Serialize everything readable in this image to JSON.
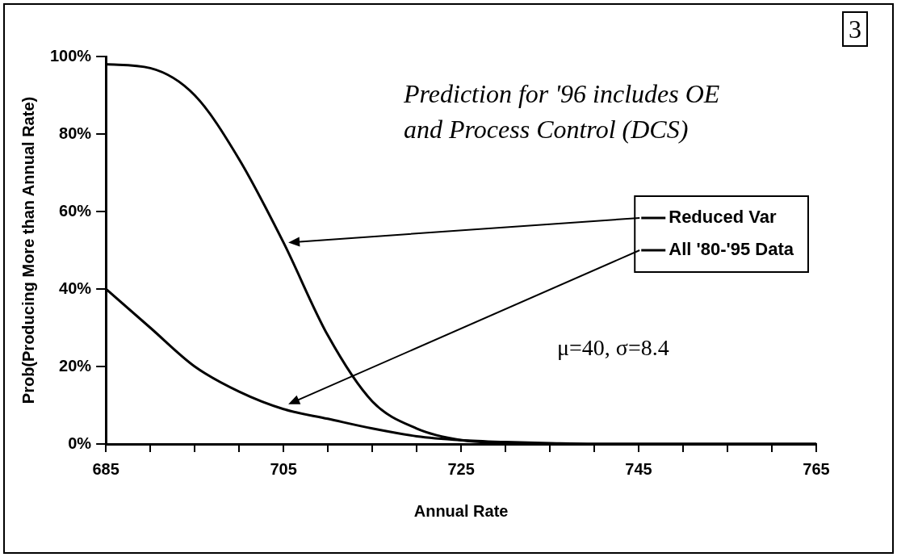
{
  "chart_data": {
    "type": "line",
    "xlabel": "Annual Rate",
    "ylabel": "Prob(Producing More than Annual Rate)",
    "x": [
      685,
      690,
      695,
      700,
      705,
      710,
      715,
      720,
      725,
      730,
      735,
      740,
      745,
      750,
      755,
      760,
      765
    ],
    "series": [
      {
        "name": "Reduced Var",
        "color": "#000000",
        "values": [
          98,
          97,
          90,
          73.5,
          52,
          28,
          11,
          4,
          1,
          0.3,
          0,
          0,
          0,
          0,
          0,
          0,
          0
        ]
      },
      {
        "name": "All '80-'95 Data",
        "color": "#000000",
        "values": [
          40,
          30,
          20,
          13.5,
          9,
          6.5,
          4,
          2,
          1,
          0.5,
          0.2,
          0,
          0,
          0,
          0,
          0,
          0
        ]
      }
    ],
    "xlim": [
      685,
      765
    ],
    "xticks": [
      685,
      {
        "value": 690,
        "label": null
      },
      {
        "value": 695,
        "label": null
      },
      {
        "value": 700,
        "label": null
      },
      705,
      {
        "value": 710,
        "label": null
      },
      {
        "value": 715,
        "label": null
      },
      {
        "value": 720,
        "label": null
      },
      725,
      {
        "value": 730,
        "label": null
      },
      {
        "value": 735,
        "label": null
      },
      {
        "value": 740,
        "label": null
      },
      745,
      {
        "value": 750,
        "label": null
      },
      {
        "value": 755,
        "label": null
      },
      {
        "value": 760,
        "label": null
      },
      765
    ],
    "ylim": [
      0,
      100
    ],
    "yticks": [
      {
        "value": 0,
        "label": "0%"
      },
      {
        "value": 20,
        "label": "20%"
      },
      {
        "value": 40,
        "label": "40%"
      },
      {
        "value": 60,
        "label": "60%"
      },
      {
        "value": 80,
        "label": "80%"
      },
      {
        "value": 100,
        "label": "100%"
      }
    ],
    "grid": false,
    "legend": "right",
    "marker": "none",
    "line_style": "solid",
    "annotations": [
      "3",
      "Prediction for '96 includes OE and Process Control (DCS)",
      "μ=40, σ=8.4"
    ]
  }
}
